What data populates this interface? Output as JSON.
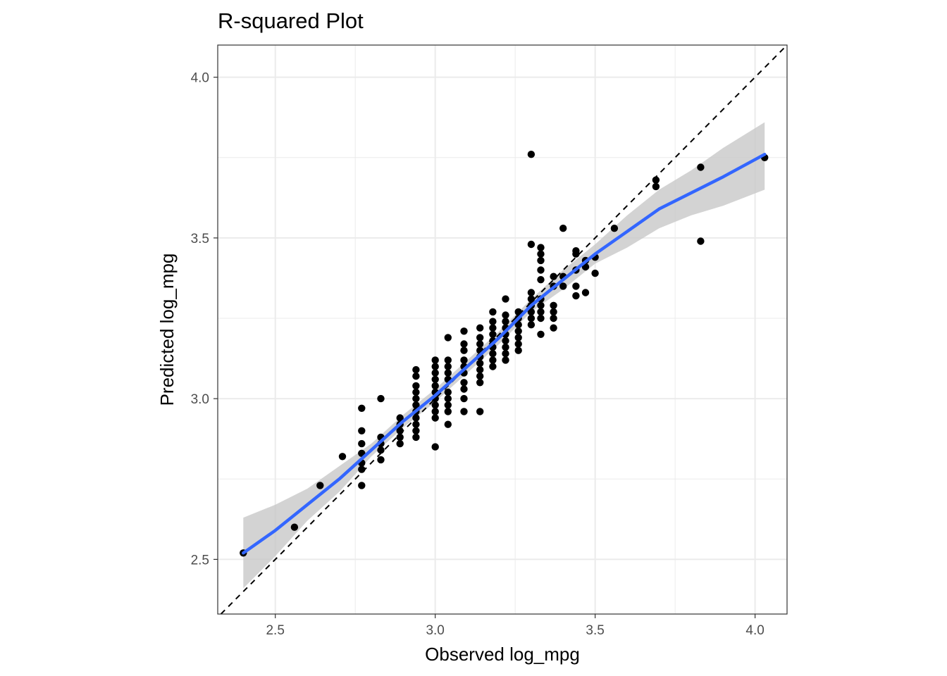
{
  "chart_data": {
    "type": "scatter",
    "title": "R-squared Plot",
    "xlabel": "Observed log_mpg",
    "ylabel": "Predicted log_mpg",
    "xlim": [
      2.32,
      4.1
    ],
    "ylim": [
      2.33,
      4.1
    ],
    "x_ticks": [
      2.5,
      3.0,
      3.5,
      4.0
    ],
    "y_ticks": [
      2.5,
      3.0,
      3.5,
      4.0
    ],
    "x_tick_labels": [
      "2.5",
      "3.0",
      "3.5",
      "4.0"
    ],
    "y_tick_labels": [
      "2.5",
      "3.0",
      "3.5",
      "4.0"
    ],
    "grid": true,
    "reference_line": {
      "type": "y=x",
      "style": "dashed",
      "color": "#000000"
    },
    "colors": {
      "points": "#000000",
      "smooth": "#3366ff",
      "ribbon": "#c8c8c8",
      "grid": "#ebebeb"
    },
    "points": [
      [
        2.4,
        2.52
      ],
      [
        2.56,
        2.6
      ],
      [
        2.64,
        2.73
      ],
      [
        2.71,
        2.82
      ],
      [
        2.77,
        2.97
      ],
      [
        2.77,
        2.9
      ],
      [
        2.77,
        2.86
      ],
      [
        2.77,
        2.83
      ],
      [
        2.77,
        2.8
      ],
      [
        2.77,
        2.78
      ],
      [
        2.77,
        2.73
      ],
      [
        2.83,
        3.0
      ],
      [
        2.83,
        2.88
      ],
      [
        2.83,
        2.86
      ],
      [
        2.83,
        2.84
      ],
      [
        2.83,
        2.81
      ],
      [
        2.89,
        2.94
      ],
      [
        2.89,
        2.92
      ],
      [
        2.89,
        2.9
      ],
      [
        2.89,
        2.88
      ],
      [
        2.89,
        2.86
      ],
      [
        2.94,
        3.09
      ],
      [
        2.94,
        3.07
      ],
      [
        2.94,
        3.04
      ],
      [
        2.94,
        3.02
      ],
      [
        2.94,
        3.0
      ],
      [
        2.94,
        2.98
      ],
      [
        2.94,
        2.96
      ],
      [
        2.94,
        2.94
      ],
      [
        2.94,
        2.92
      ],
      [
        2.94,
        2.9
      ],
      [
        2.94,
        2.88
      ],
      [
        3.0,
        3.12
      ],
      [
        3.0,
        3.1
      ],
      [
        3.0,
        3.08
      ],
      [
        3.0,
        3.06
      ],
      [
        3.0,
        3.04
      ],
      [
        3.0,
        3.02
      ],
      [
        3.0,
        3.0
      ],
      [
        3.0,
        2.98
      ],
      [
        3.0,
        2.96
      ],
      [
        3.0,
        2.94
      ],
      [
        3.0,
        2.85
      ],
      [
        3.04,
        3.12
      ],
      [
        3.04,
        3.1
      ],
      [
        3.04,
        3.08
      ],
      [
        3.04,
        3.06
      ],
      [
        3.04,
        3.02
      ],
      [
        3.04,
        3.0
      ],
      [
        3.04,
        2.98
      ],
      [
        3.04,
        2.96
      ],
      [
        3.04,
        3.19
      ],
      [
        3.04,
        2.92
      ],
      [
        3.09,
        3.21
      ],
      [
        3.09,
        3.17
      ],
      [
        3.09,
        3.15
      ],
      [
        3.09,
        3.12
      ],
      [
        3.09,
        3.1
      ],
      [
        3.09,
        3.08
      ],
      [
        3.09,
        3.05
      ],
      [
        3.09,
        3.03
      ],
      [
        3.09,
        3.0
      ],
      [
        3.09,
        2.96
      ],
      [
        3.14,
        3.22
      ],
      [
        3.14,
        3.19
      ],
      [
        3.14,
        3.17
      ],
      [
        3.14,
        3.15
      ],
      [
        3.14,
        3.13
      ],
      [
        3.14,
        3.11
      ],
      [
        3.14,
        3.09
      ],
      [
        3.14,
        3.07
      ],
      [
        3.14,
        3.05
      ],
      [
        3.14,
        2.96
      ],
      [
        3.18,
        3.27
      ],
      [
        3.18,
        3.24
      ],
      [
        3.18,
        3.22
      ],
      [
        3.18,
        3.2
      ],
      [
        3.18,
        3.18
      ],
      [
        3.18,
        3.16
      ],
      [
        3.18,
        3.14
      ],
      [
        3.18,
        3.12
      ],
      [
        3.18,
        3.1
      ],
      [
        3.22,
        3.31
      ],
      [
        3.22,
        3.26
      ],
      [
        3.22,
        3.24
      ],
      [
        3.22,
        3.22
      ],
      [
        3.22,
        3.2
      ],
      [
        3.22,
        3.18
      ],
      [
        3.22,
        3.16
      ],
      [
        3.22,
        3.14
      ],
      [
        3.22,
        3.12
      ],
      [
        3.26,
        3.27
      ],
      [
        3.26,
        3.25
      ],
      [
        3.26,
        3.23
      ],
      [
        3.26,
        3.21
      ],
      [
        3.26,
        3.19
      ],
      [
        3.26,
        3.17
      ],
      [
        3.26,
        3.15
      ],
      [
        3.3,
        3.76
      ],
      [
        3.3,
        3.48
      ],
      [
        3.3,
        3.33
      ],
      [
        3.3,
        3.31
      ],
      [
        3.3,
        3.29
      ],
      [
        3.3,
        3.27
      ],
      [
        3.3,
        3.25
      ],
      [
        3.3,
        3.23
      ],
      [
        3.33,
        3.47
      ],
      [
        3.33,
        3.45
      ],
      [
        3.33,
        3.43
      ],
      [
        3.33,
        3.4
      ],
      [
        3.33,
        3.37
      ],
      [
        3.33,
        3.31
      ],
      [
        3.33,
        3.29
      ],
      [
        3.33,
        3.27
      ],
      [
        3.33,
        3.25
      ],
      [
        3.33,
        3.2
      ],
      [
        3.37,
        3.38
      ],
      [
        3.37,
        3.35
      ],
      [
        3.37,
        3.29
      ],
      [
        3.37,
        3.27
      ],
      [
        3.37,
        3.25
      ],
      [
        3.37,
        3.22
      ],
      [
        3.4,
        3.53
      ],
      [
        3.4,
        3.38
      ],
      [
        3.4,
        3.35
      ],
      [
        3.44,
        3.46
      ],
      [
        3.44,
        3.45
      ],
      [
        3.44,
        3.4
      ],
      [
        3.44,
        3.35
      ],
      [
        3.44,
        3.32
      ],
      [
        3.47,
        3.43
      ],
      [
        3.47,
        3.41
      ],
      [
        3.47,
        3.33
      ],
      [
        3.5,
        3.44
      ],
      [
        3.5,
        3.39
      ],
      [
        3.56,
        3.53
      ],
      [
        3.69,
        3.68
      ],
      [
        3.69,
        3.66
      ],
      [
        3.83,
        3.72
      ],
      [
        3.83,
        3.49
      ],
      [
        4.03,
        3.75
      ]
    ],
    "smooth_curve": [
      [
        2.4,
        2.52
      ],
      [
        2.5,
        2.59
      ],
      [
        2.6,
        2.67
      ],
      [
        2.7,
        2.75
      ],
      [
        2.8,
        2.84
      ],
      [
        2.9,
        2.93
      ],
      [
        3.0,
        3.01
      ],
      [
        3.1,
        3.1
      ],
      [
        3.2,
        3.19
      ],
      [
        3.3,
        3.29
      ],
      [
        3.4,
        3.37
      ],
      [
        3.5,
        3.45
      ],
      [
        3.6,
        3.52
      ],
      [
        3.7,
        3.59
      ],
      [
        3.8,
        3.64
      ],
      [
        3.9,
        3.69
      ],
      [
        4.03,
        3.76
      ]
    ],
    "ribbon_upper": [
      [
        2.4,
        2.63
      ],
      [
        2.5,
        2.67
      ],
      [
        2.6,
        2.72
      ],
      [
        2.7,
        2.79
      ],
      [
        2.8,
        2.86
      ],
      [
        2.9,
        2.95
      ],
      [
        3.0,
        3.03
      ],
      [
        3.1,
        3.12
      ],
      [
        3.2,
        3.21
      ],
      [
        3.3,
        3.31
      ],
      [
        3.4,
        3.4
      ],
      [
        3.5,
        3.48
      ],
      [
        3.6,
        3.57
      ],
      [
        3.7,
        3.65
      ],
      [
        3.8,
        3.71
      ],
      [
        3.9,
        3.78
      ],
      [
        4.03,
        3.86
      ]
    ],
    "ribbon_lower": [
      [
        2.4,
        2.41
      ],
      [
        2.5,
        2.51
      ],
      [
        2.6,
        2.62
      ],
      [
        2.7,
        2.71
      ],
      [
        2.8,
        2.82
      ],
      [
        2.9,
        2.91
      ],
      [
        3.0,
        2.99
      ],
      [
        3.1,
        3.08
      ],
      [
        3.2,
        3.17
      ],
      [
        3.3,
        3.27
      ],
      [
        3.4,
        3.34
      ],
      [
        3.5,
        3.42
      ],
      [
        3.6,
        3.47
      ],
      [
        3.7,
        3.53
      ],
      [
        3.8,
        3.57
      ],
      [
        3.9,
        3.6
      ],
      [
        4.03,
        3.65
      ]
    ]
  }
}
